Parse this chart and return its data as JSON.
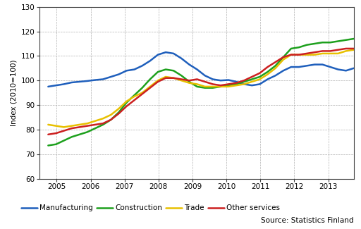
{
  "ylabel": "Index (2010=100)",
  "ylim": [
    60,
    130
  ],
  "yticks": [
    60,
    70,
    80,
    90,
    100,
    110,
    120,
    130
  ],
  "xlim": [
    2004.5,
    2013.75
  ],
  "xticks": [
    2005,
    2006,
    2007,
    2008,
    2009,
    2010,
    2011,
    2012,
    2013
  ],
  "source_text": "Source: Statistics Finland",
  "legend_labels": [
    "Manufacturing",
    "Construction",
    "Trade",
    "Other services"
  ],
  "colors": [
    "#1f5fbc",
    "#1da01d",
    "#e8c000",
    "#cc2020"
  ],
  "line_width": 1.8,
  "manufacturing": [
    97.5,
    98.0,
    98.5,
    99.2,
    99.5,
    99.8,
    100.2,
    100.5,
    101.5,
    102.5,
    104.0,
    104.5,
    106.0,
    108.0,
    110.5,
    111.5,
    111.0,
    109.0,
    106.5,
    104.5,
    102.0,
    100.5,
    100.0,
    100.2,
    99.5,
    98.5,
    98.0,
    98.5,
    100.5,
    102.0,
    104.0,
    105.5,
    105.5,
    106.0,
    106.5,
    106.5,
    105.5,
    104.5,
    104.0,
    105.0
  ],
  "construction": [
    73.5,
    74.0,
    75.5,
    77.0,
    78.0,
    79.0,
    80.5,
    82.0,
    84.0,
    87.0,
    91.0,
    94.0,
    97.0,
    100.5,
    103.5,
    104.5,
    104.0,
    102.0,
    99.5,
    97.5,
    97.0,
    97.0,
    97.5,
    98.0,
    98.5,
    99.5,
    100.5,
    101.5,
    103.5,
    106.0,
    109.5,
    113.0,
    113.5,
    114.5,
    115.0,
    115.5,
    115.5,
    116.0,
    116.5,
    117.0
  ],
  "trade": [
    82.0,
    81.5,
    81.0,
    81.5,
    82.0,
    82.5,
    83.5,
    84.5,
    86.0,
    88.5,
    91.5,
    93.5,
    95.0,
    97.5,
    100.0,
    101.5,
    101.0,
    100.0,
    99.0,
    98.5,
    97.5,
    97.5,
    97.5,
    97.5,
    98.0,
    98.5,
    99.5,
    100.5,
    102.5,
    105.0,
    108.5,
    110.5,
    110.5,
    110.5,
    110.5,
    111.0,
    111.0,
    111.0,
    112.0,
    112.5
  ],
  "other_services": [
    78.0,
    78.5,
    79.5,
    80.5,
    81.0,
    81.5,
    82.0,
    82.5,
    84.0,
    86.5,
    89.5,
    92.0,
    94.5,
    97.0,
    99.5,
    101.0,
    101.0,
    100.5,
    100.0,
    100.5,
    99.5,
    98.5,
    98.0,
    98.5,
    99.0,
    100.0,
    101.5,
    103.0,
    105.5,
    107.5,
    109.5,
    110.5,
    110.5,
    111.0,
    111.5,
    112.0,
    112.0,
    112.5,
    113.0,
    113.0
  ]
}
